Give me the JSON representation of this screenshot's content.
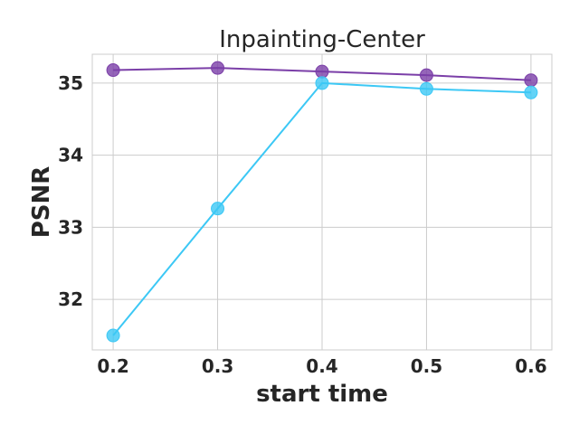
{
  "chart_data": {
    "type": "line",
    "title": "Inpainting-Center",
    "xlabel": "start time",
    "ylabel": "PSNR",
    "x": [
      0.2,
      0.3,
      0.4,
      0.5,
      0.6
    ],
    "xticks": [
      "0.2",
      "0.3",
      "0.4",
      "0.5",
      "0.6"
    ],
    "yticks": [
      "32",
      "33",
      "34",
      "35"
    ],
    "ytick_values": [
      32,
      33,
      34,
      35
    ],
    "xlim": [
      0.18,
      0.62
    ],
    "ylim": [
      31.3,
      35.4
    ],
    "grid": true,
    "series": [
      {
        "values": [
          35.18,
          35.21,
          35.16,
          35.11,
          35.04
        ],
        "color": "#7b3fa8"
      },
      {
        "values": [
          31.5,
          33.26,
          35.0,
          34.92,
          34.87
        ],
        "color": "#3cc8f5"
      }
    ]
  }
}
